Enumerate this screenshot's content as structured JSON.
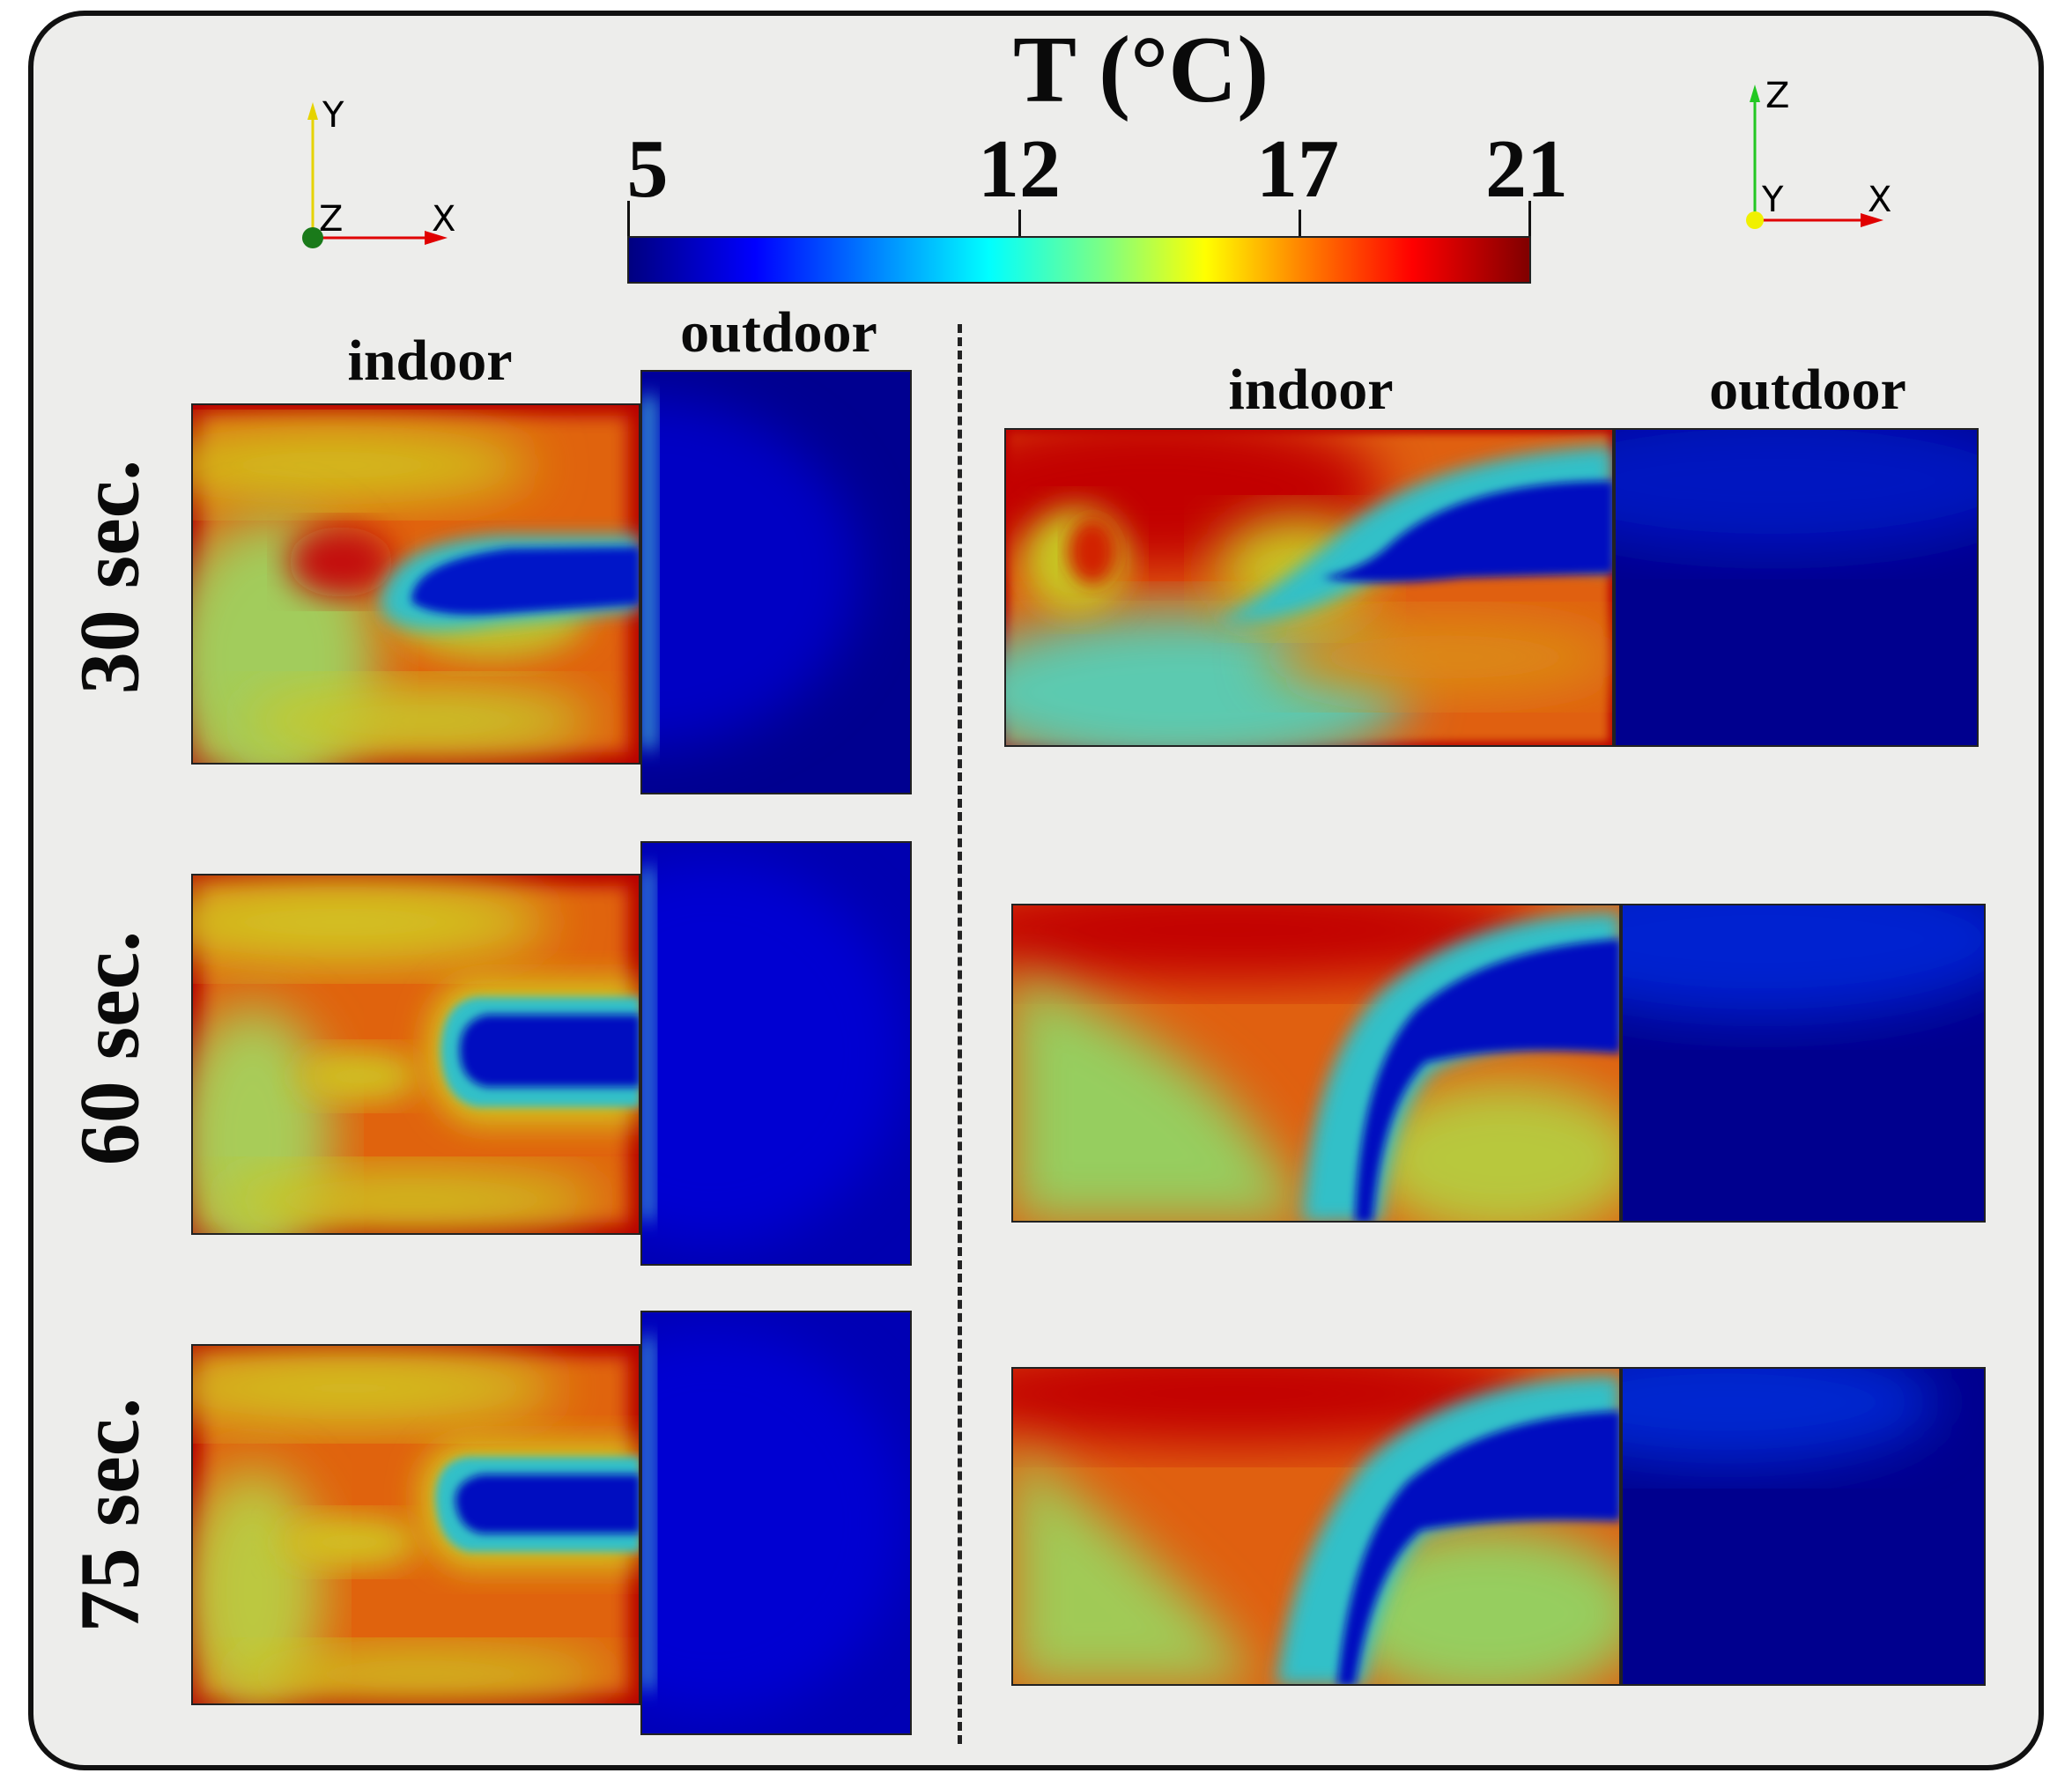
{
  "colorbar": {
    "title": "T (°C)",
    "ticks": [
      "5",
      "12",
      "17",
      "21"
    ],
    "min": 5,
    "max": 21
  },
  "left_view": {
    "axis": {
      "vertical": "Y",
      "horizontal": "X",
      "normal": "Z"
    },
    "label_indoor": "indoor",
    "label_outdoor": "outdoor"
  },
  "right_view": {
    "axis": {
      "vertical": "Z",
      "horizontal": "X",
      "normal": "Y"
    },
    "label_indoor": "indoor",
    "label_outdoor": "outdoor"
  },
  "rows": [
    {
      "label": "30 sec."
    },
    {
      "label": "60 sec."
    },
    {
      "label": "75 sec."
    }
  ],
  "colors": {
    "deep_blue": "#00008e",
    "blue": "#0000c8",
    "red": "#c40000",
    "orange": "#e86a10",
    "yellow": "#d6cc20",
    "green": "#8ed06a",
    "cyan": "#30c8d0"
  }
}
